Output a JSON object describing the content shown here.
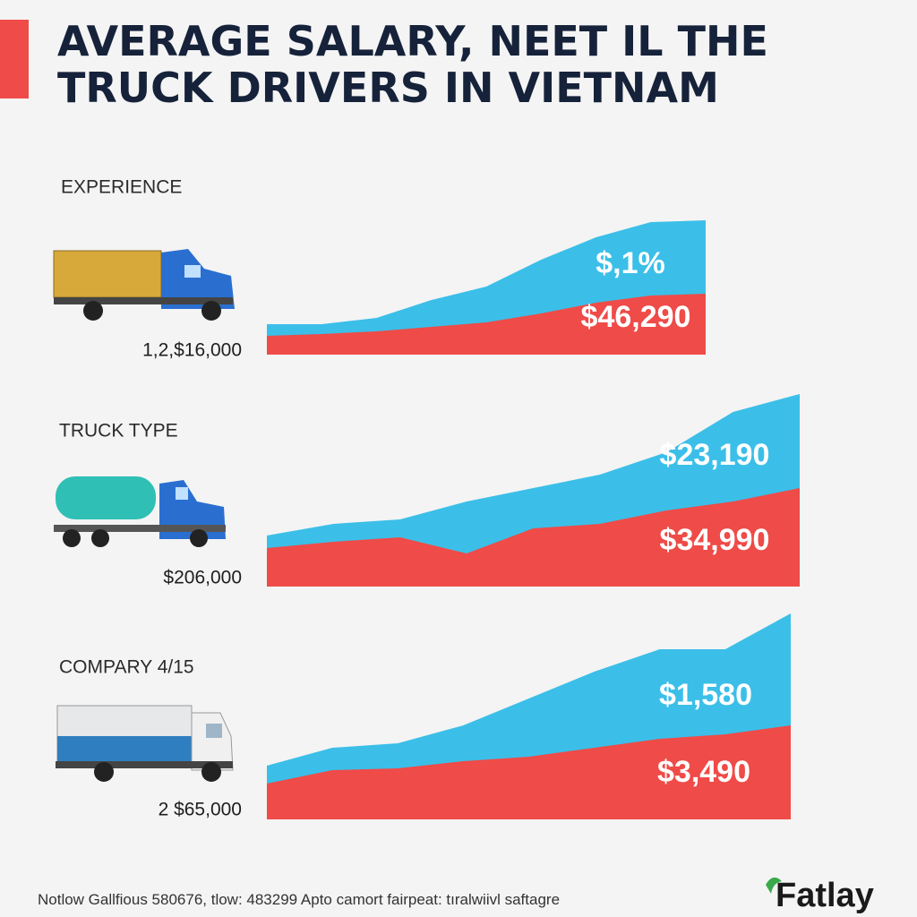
{
  "header": {
    "title_lines": [
      "AVERAGE SALARY, NEET IL THE",
      "TRUCK DRIVERS IN VIETNAM"
    ]
  },
  "chart_data": [
    {
      "type": "area",
      "label": "EXPERIENCE",
      "amount": "1,2,$16,000",
      "x": [
        0,
        1,
        2,
        3,
        4,
        5,
        6,
        7,
        8
      ],
      "xlim": [
        0,
        8
      ],
      "ylim": [
        0,
        120
      ],
      "series": [
        {
          "color": "#3bbfe8",
          "values": [
            17,
            17,
            20.5,
            30.5,
            38,
            53,
            65.5,
            74,
            75
          ],
          "annotation": "$,1%"
        },
        {
          "color": "#ef4b48",
          "values": [
            10.5,
            11.5,
            13,
            15.5,
            18,
            23,
            29,
            33,
            34
          ],
          "annotation": "$46,290"
        }
      ]
    },
    {
      "type": "area",
      "label": "TRUCK TYPE",
      "amount": "$206,000",
      "x": [
        0,
        1,
        2,
        3,
        4,
        5,
        6,
        7,
        8
      ],
      "xlim": [
        0,
        8
      ],
      "ylim": [
        0,
        120
      ],
      "series": [
        {
          "color": "#3bbfe8",
          "values": [
            28.5,
            35,
            37.5,
            47.5,
            55,
            62.5,
            75,
            97.5,
            107.5
          ],
          "annotation": "$23,190"
        },
        {
          "color": "#ef4b48",
          "values": [
            21.5,
            25,
            27.5,
            18.5,
            32.5,
            35,
            42.5,
            47.5,
            55
          ],
          "annotation": "$34,990"
        }
      ]
    },
    {
      "type": "area",
      "label": "COMPARY 4/15",
      "amount": "2 $65,000",
      "x": [
        0,
        1,
        2,
        3,
        4,
        5,
        6,
        7,
        8
      ],
      "xlim": [
        0,
        8
      ],
      "ylim": [
        0,
        120
      ],
      "series": [
        {
          "color": "#3bbfe8",
          "values": [
            30,
            40,
            42.5,
            52.5,
            67.5,
            82.5,
            95,
            95,
            115
          ],
          "annotation": "$1,580"
        },
        {
          "color": "#ef4b48",
          "values": [
            20,
            27.5,
            28.5,
            32.5,
            35,
            40,
            45,
            47.5,
            52.5
          ],
          "annotation": "$3,490"
        }
      ]
    }
  ],
  "footer": {
    "note": "Notlow Gallfious 580676, tlow: 483299 Apto camort fairpeat: tıralwiivl saftagre",
    "logo": "Fatlay"
  }
}
